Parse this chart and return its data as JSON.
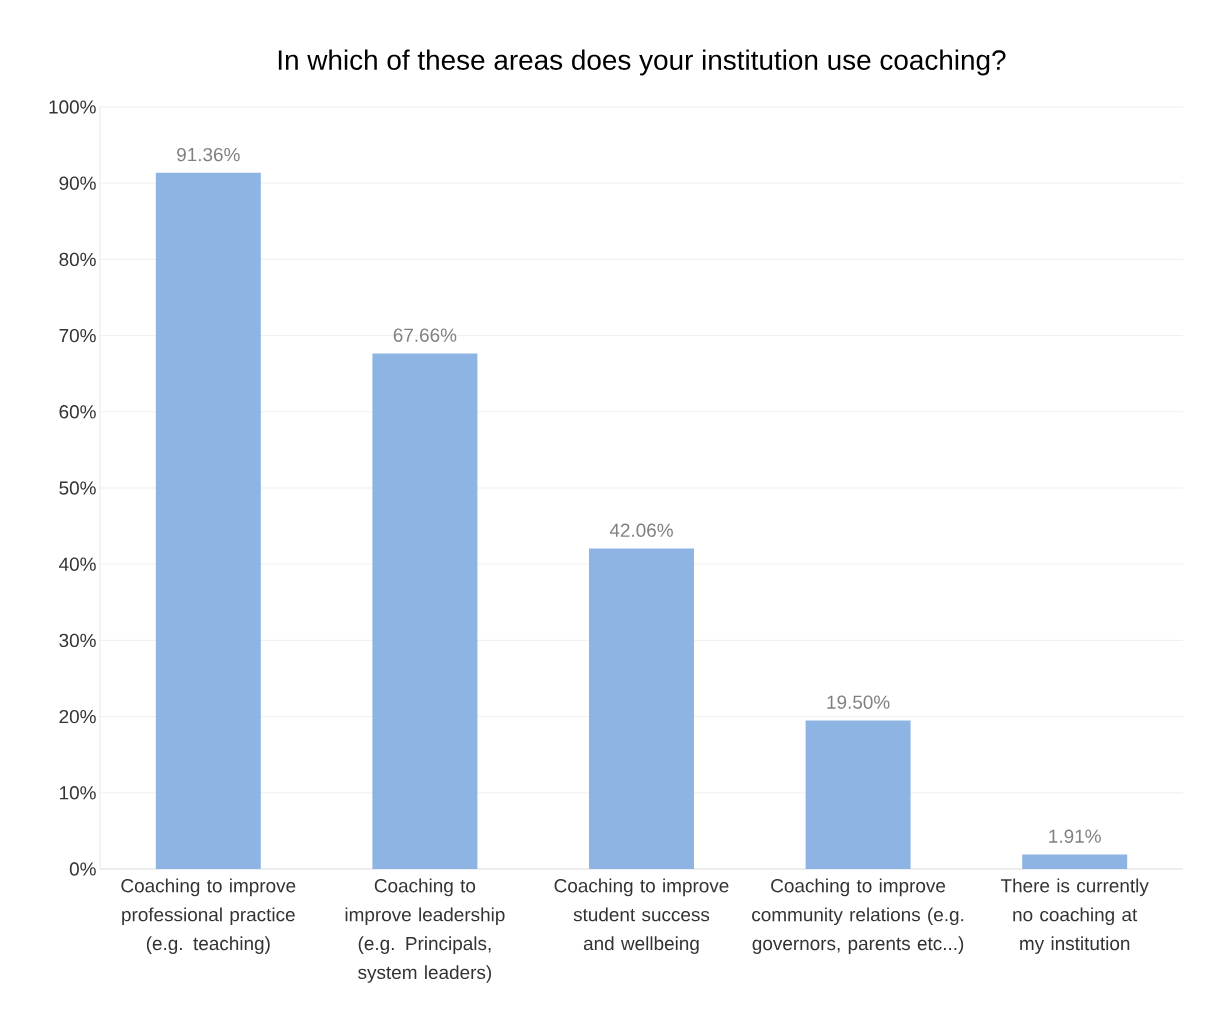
{
  "chart_data": {
    "type": "bar",
    "title": "In which of these areas does your institution use coaching?",
    "categories": [
      "Coaching to improve professional practice (e.g. teaching)",
      "Coaching to improve leadership (e.g. Principals, system leaders)",
      "Coaching to improve student success and wellbeing",
      "Coaching to improve community relations (e.g. governors, parents etc...)",
      "There is currently no coaching at my institution"
    ],
    "values": [
      91.36,
      67.66,
      42.06,
      19.5,
      1.91
    ],
    "value_labels": [
      "91.36%",
      "67.66%",
      "42.06%",
      "19.50%",
      "1.91%"
    ],
    "color": "#8eb4e3",
    "ylim": [
      0,
      100
    ],
    "yticks": [
      {
        "value": 0,
        "label": "0%"
      },
      {
        "value": 10,
        "label": "10%"
      },
      {
        "value": 20,
        "label": "20%"
      },
      {
        "value": 30,
        "label": "30%"
      },
      {
        "value": 40,
        "label": "40%"
      },
      {
        "value": 50,
        "label": "50%"
      },
      {
        "value": 60,
        "label": "60%"
      },
      {
        "value": 70,
        "label": "70%"
      },
      {
        "value": 80,
        "label": "80%"
      },
      {
        "value": 90,
        "label": "90%"
      },
      {
        "value": 100,
        "label": "100%"
      }
    ],
    "grid": "y"
  }
}
